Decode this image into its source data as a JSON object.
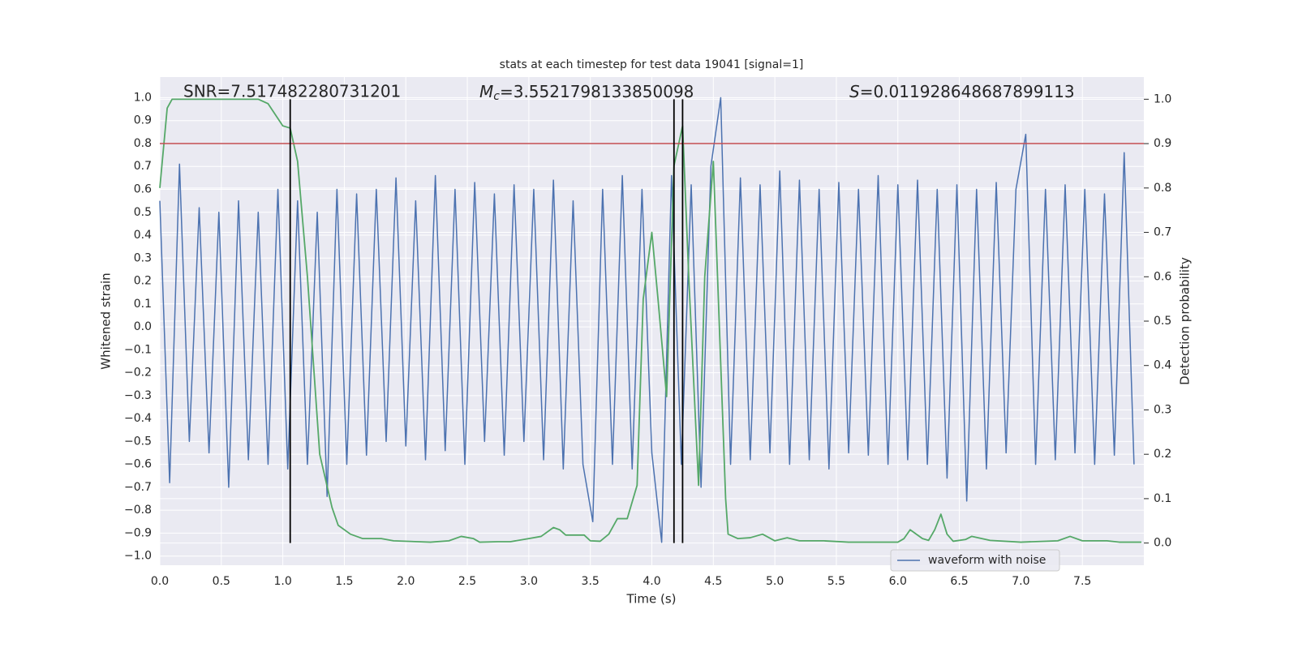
{
  "chart_data": {
    "type": "line",
    "title": "stats at each timestep for test data 19041 [signal=1]",
    "xlabel": "Time (s)",
    "ylabel": "Whitened strain",
    "y2label": "Detection probability",
    "annotations": [
      {
        "text": "SNR=7.517482280731201"
      },
      {
        "symbol": "M",
        "subscript": "c",
        "text": "=3.5521798133850098"
      },
      {
        "symbol": "S",
        "text": "=0.011928648687899113"
      }
    ],
    "xlim": [
      0,
      8.0
    ],
    "ylim": [
      -1.04,
      1.09
    ],
    "y2lim": [
      -0.05,
      1.05
    ],
    "grid": true,
    "legend": "lower right",
    "xticks": [
      {
        "value": 0,
        "label": "0.0"
      },
      {
        "value": 0.5,
        "label": "0.5"
      },
      {
        "value": 1,
        "label": "1.0"
      },
      {
        "value": 1.5,
        "label": "1.5"
      },
      {
        "value": 2,
        "label": "2.0"
      },
      {
        "value": 2.5,
        "label": "2.5"
      },
      {
        "value": 3,
        "label": "3.0"
      },
      {
        "value": 3.5,
        "label": "3.5"
      },
      {
        "value": 4,
        "label": "4.0"
      },
      {
        "value": 4.5,
        "label": "4.5"
      },
      {
        "value": 5,
        "label": "5.0"
      },
      {
        "value": 5.5,
        "label": "5.5"
      },
      {
        "value": 6,
        "label": "6.0"
      },
      {
        "value": 6.5,
        "label": "6.5"
      },
      {
        "value": 7,
        "label": "7.0"
      },
      {
        "value": 7.5,
        "label": "7.5"
      }
    ],
    "yticks": [
      {
        "value": -1,
        "label": "−1.0"
      },
      {
        "value": -0.9,
        "label": "−0.9"
      },
      {
        "value": -0.8,
        "label": "−0.8"
      },
      {
        "value": -0.7,
        "label": "−0.7"
      },
      {
        "value": -0.6,
        "label": "−0.6"
      },
      {
        "value": -0.5,
        "label": "−0.5"
      },
      {
        "value": -0.4,
        "label": "−0.4"
      },
      {
        "value": -0.3,
        "label": "−0.3"
      },
      {
        "value": -0.2,
        "label": "−0.2"
      },
      {
        "value": -0.1,
        "label": "−0.1"
      },
      {
        "value": 0,
        "label": "0.0"
      },
      {
        "value": 0.1,
        "label": "0.1"
      },
      {
        "value": 0.2,
        "label": "0.2"
      },
      {
        "value": 0.3,
        "label": "0.3"
      },
      {
        "value": 0.4,
        "label": "0.4"
      },
      {
        "value": 0.5,
        "label": "0.5"
      },
      {
        "value": 0.6,
        "label": "0.6"
      },
      {
        "value": 0.7,
        "label": "0.7"
      },
      {
        "value": 0.8,
        "label": "0.8"
      },
      {
        "value": 0.9,
        "label": "0.9"
      },
      {
        "value": 1,
        "label": "1.0"
      }
    ],
    "y2ticks": [
      {
        "value": 0,
        "label": "0.0"
      },
      {
        "value": 0.1,
        "label": "0.1"
      },
      {
        "value": 0.2,
        "label": "0.2"
      },
      {
        "value": 0.3,
        "label": "0.3"
      },
      {
        "value": 0.4,
        "label": "0.4"
      },
      {
        "value": 0.5,
        "label": "0.5"
      },
      {
        "value": 0.6,
        "label": "0.6"
      },
      {
        "value": 0.7,
        "label": "0.7"
      },
      {
        "value": 0.8,
        "label": "0.8"
      },
      {
        "value": 0.9,
        "label": "0.9"
      },
      {
        "value": 1,
        "label": "1.0"
      }
    ],
    "hlines": [
      {
        "y": 0.8,
        "color": "#c44e52"
      }
    ],
    "vlines": [
      {
        "x": 1.06,
        "ymin": 0,
        "ymax": 1,
        "color": "#000000"
      },
      {
        "x": 4.18,
        "ymin": 0,
        "ymax": 1,
        "color": "#000000"
      },
      {
        "x": 4.25,
        "ymin": 0,
        "ymax": 1,
        "color": "#000000"
      }
    ],
    "series": [
      {
        "name": "waveform with noise",
        "color": "#4c72b0",
        "x": [
          0,
          0.08,
          0.16,
          0.24,
          0.32,
          0.4,
          0.48,
          0.56,
          0.64,
          0.72,
          0.8,
          0.88,
          0.96,
          1.04,
          1.12,
          1.2,
          1.28,
          1.36,
          1.44,
          1.52,
          1.6,
          1.68,
          1.76,
          1.84,
          1.92,
          2.0,
          2.08,
          2.16,
          2.24,
          2.32,
          2.4,
          2.48,
          2.56,
          2.64,
          2.72,
          2.8,
          2.88,
          2.96,
          3.04,
          3.12,
          3.2,
          3.28,
          3.36,
          3.44,
          3.52,
          3.6,
          3.68,
          3.76,
          3.84,
          3.92,
          4.0,
          4.08,
          4.16,
          4.24,
          4.32,
          4.4,
          4.48,
          4.56,
          4.64,
          4.72,
          4.8,
          4.88,
          4.96,
          5.04,
          5.12,
          5.2,
          5.28,
          5.36,
          5.44,
          5.52,
          5.6,
          5.68,
          5.76,
          5.84,
          5.92,
          6.0,
          6.08,
          6.16,
          6.24,
          6.32,
          6.4,
          6.48,
          6.56,
          6.64,
          6.72,
          6.8,
          6.88,
          6.96,
          7.04,
          7.12,
          7.2,
          7.28,
          7.36,
          7.44,
          7.52,
          7.6,
          7.68,
          7.76,
          7.84,
          7.92
        ],
        "values": [
          0.55,
          -0.68,
          0.71,
          -0.5,
          0.52,
          -0.55,
          0.5,
          -0.7,
          0.55,
          -0.58,
          0.5,
          -0.6,
          0.6,
          -0.62,
          0.55,
          -0.6,
          0.5,
          -0.74,
          0.6,
          -0.6,
          0.58,
          -0.56,
          0.6,
          -0.5,
          0.65,
          -0.52,
          0.55,
          -0.58,
          0.66,
          -0.54,
          0.6,
          -0.6,
          0.63,
          -0.5,
          0.58,
          -0.56,
          0.62,
          -0.5,
          0.6,
          -0.58,
          0.64,
          -0.62,
          0.55,
          -0.6,
          -0.85,
          0.6,
          -0.6,
          0.66,
          -0.62,
          0.6,
          -0.55,
          -0.94,
          0.66,
          -0.6,
          0.62,
          -0.7,
          0.7,
          1.0,
          -0.6,
          0.65,
          -0.58,
          0.62,
          -0.55,
          0.68,
          -0.6,
          0.64,
          -0.58,
          0.6,
          -0.62,
          0.63,
          -0.55,
          0.6,
          -0.56,
          0.66,
          -0.6,
          0.62,
          -0.58,
          0.64,
          -0.6,
          0.6,
          -0.66,
          0.62,
          -0.76,
          0.6,
          -0.62,
          0.63,
          -0.55,
          0.6,
          0.84,
          -0.6,
          0.6,
          -0.58,
          0.62,
          -0.55,
          0.6,
          -0.6,
          0.58,
          -0.56,
          0.76,
          -0.6
        ]
      },
      {
        "color": "#55a868",
        "axis": "y2",
        "x": [
          0,
          0.06,
          0.1,
          0.8,
          0.88,
          1.0,
          1.06,
          1.12,
          1.2,
          1.3,
          1.4,
          1.45,
          1.55,
          1.65,
          1.8,
          1.9,
          2.2,
          2.35,
          2.45,
          2.55,
          2.6,
          2.75,
          2.85,
          3.0,
          3.1,
          3.2,
          3.25,
          3.3,
          3.45,
          3.5,
          3.58,
          3.65,
          3.72,
          3.8,
          3.88,
          3.93,
          4.0,
          4.05,
          4.12,
          4.18,
          4.25,
          4.3,
          4.38,
          4.43,
          4.5,
          4.6,
          4.62,
          4.7,
          4.8,
          4.9,
          5.0,
          5.1,
          5.2,
          5.4,
          5.6,
          6.0,
          6.05,
          6.1,
          6.2,
          6.25,
          6.3,
          6.35,
          6.4,
          6.45,
          6.55,
          6.6,
          6.75,
          7.0,
          7.3,
          7.4,
          7.5,
          7.7,
          7.8,
          7.98
        ],
        "values": [
          0.8,
          0.98,
          1.0,
          1.0,
          0.99,
          0.94,
          0.935,
          0.86,
          0.6,
          0.2,
          0.08,
          0.04,
          0.02,
          0.01,
          0.01,
          0.005,
          0.002,
          0.005,
          0.015,
          0.01,
          0.002,
          0.003,
          0.003,
          0.01,
          0.015,
          0.035,
          0.03,
          0.018,
          0.018,
          0.005,
          0.004,
          0.02,
          0.055,
          0.055,
          0.13,
          0.55,
          0.7,
          0.55,
          0.33,
          0.85,
          0.94,
          0.6,
          0.13,
          0.6,
          0.86,
          0.1,
          0.02,
          0.01,
          0.012,
          0.02,
          0.005,
          0.012,
          0.005,
          0.005,
          0.002,
          0.002,
          0.01,
          0.03,
          0.01,
          0.006,
          0.03,
          0.065,
          0.02,
          0.004,
          0.008,
          0.015,
          0.006,
          0.002,
          0.005,
          0.015,
          0.005,
          0.005,
          0.002,
          0.002
        ]
      }
    ]
  }
}
